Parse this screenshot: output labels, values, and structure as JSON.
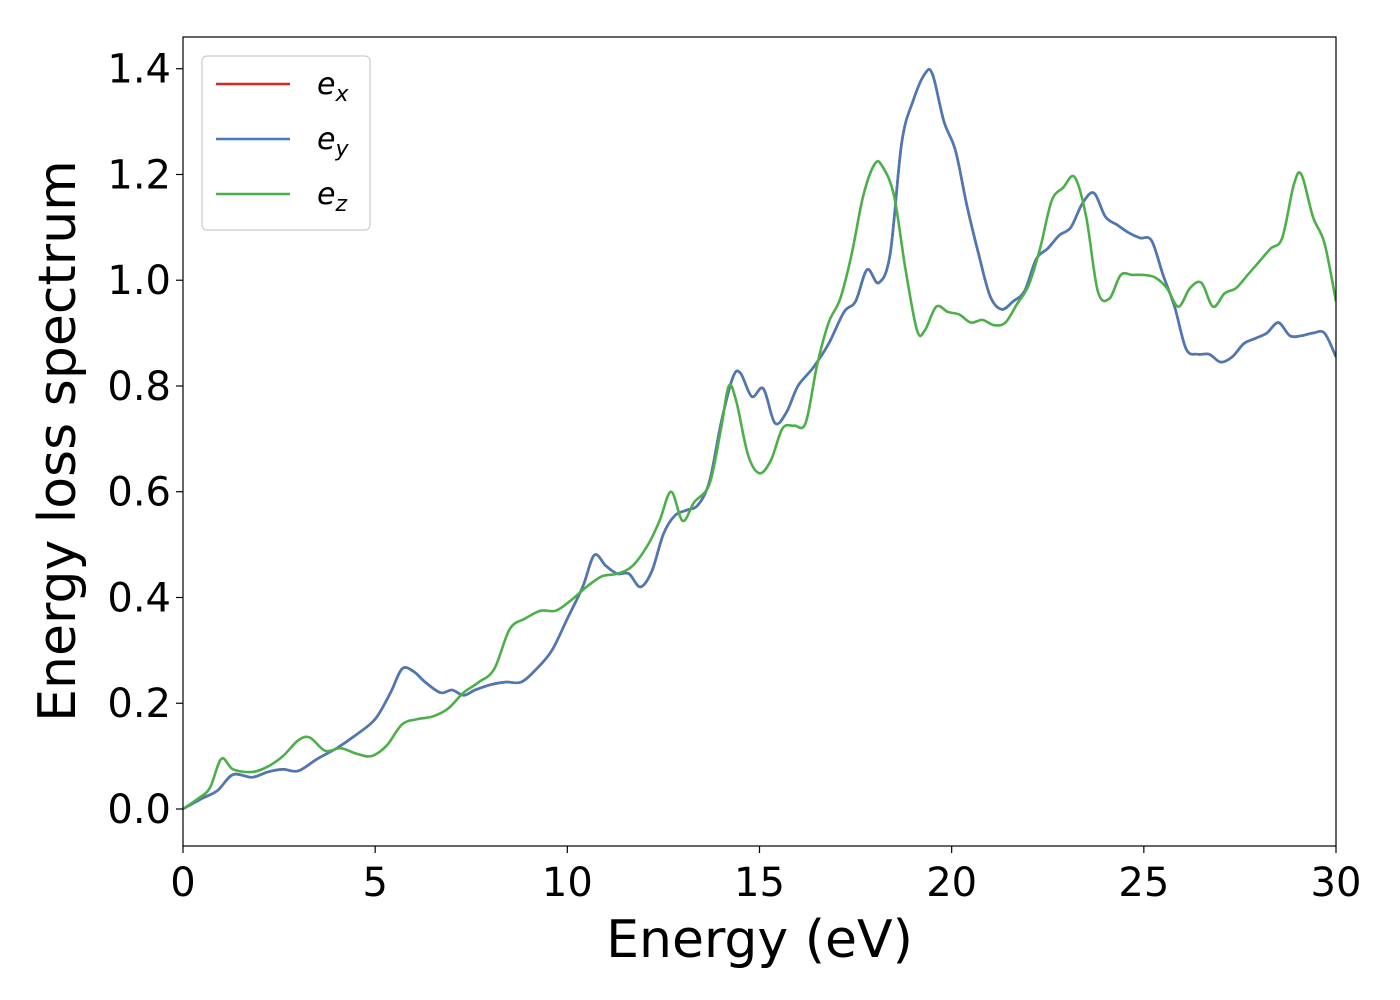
{
  "chart_data": {
    "type": "line",
    "xlabel": "Energy (eV)",
    "ylabel": "Energy loss spectrum",
    "xlim": [
      0,
      30
    ],
    "ylim": [
      -0.07,
      1.46
    ],
    "grid": false,
    "legend_position": "top-left",
    "x_ticks": [
      "0",
      "5",
      "10",
      "15",
      "20",
      "25",
      "30"
    ],
    "y_ticks": [
      "0.0",
      "0.2",
      "0.4",
      "0.6",
      "0.8",
      "1.0",
      "1.2",
      "1.4"
    ],
    "x_tick_values": [
      0,
      5,
      10,
      15,
      20,
      25,
      30
    ],
    "y_tick_values": [
      0.0,
      0.2,
      0.4,
      0.6,
      0.8,
      1.0,
      1.2,
      1.4
    ],
    "series": [
      {
        "name": "e_x",
        "label_base": "e",
        "label_sub": "x",
        "color": "#d62728",
        "x": [
          0,
          0.5,
          0.9,
          1.3,
          1.8,
          2.2,
          2.6,
          3.0,
          3.5,
          4.0,
          4.5,
          5.0,
          5.4,
          5.7,
          6.0,
          6.3,
          6.7,
          7.0,
          7.3,
          7.6,
          8.0,
          8.4,
          8.8,
          9.2,
          9.6,
          10.0,
          10.4,
          10.7,
          11.0,
          11.3,
          11.6,
          11.9,
          12.2,
          12.5,
          12.8,
          13.1,
          13.4,
          13.7,
          14.0,
          14.3,
          14.5,
          14.8,
          15.1,
          15.4,
          15.7,
          16.0,
          16.4,
          16.8,
          17.2,
          17.5,
          17.8,
          18.1,
          18.4,
          18.7,
          19.0,
          19.3,
          19.5,
          19.8,
          20.1,
          20.4,
          20.7,
          21.0,
          21.3,
          21.6,
          21.9,
          22.2,
          22.5,
          22.8,
          23.1,
          23.4,
          23.7,
          24.0,
          24.3,
          24.6,
          24.9,
          25.2,
          25.5,
          25.8,
          26.1,
          26.4,
          26.7,
          27.0,
          27.3,
          27.6,
          27.9,
          28.2,
          28.5,
          28.8,
          29.1,
          29.4,
          29.7,
          30.0
        ],
        "y": [
          0.0,
          0.02,
          0.035,
          0.065,
          0.06,
          0.07,
          0.075,
          0.072,
          0.095,
          0.115,
          0.14,
          0.17,
          0.22,
          0.265,
          0.26,
          0.24,
          0.22,
          0.225,
          0.215,
          0.225,
          0.235,
          0.24,
          0.24,
          0.265,
          0.3,
          0.36,
          0.42,
          0.48,
          0.46,
          0.445,
          0.445,
          0.42,
          0.45,
          0.52,
          0.555,
          0.565,
          0.575,
          0.62,
          0.73,
          0.815,
          0.825,
          0.78,
          0.795,
          0.73,
          0.75,
          0.8,
          0.835,
          0.88,
          0.94,
          0.96,
          1.02,
          0.995,
          1.05,
          1.26,
          1.34,
          1.39,
          1.39,
          1.3,
          1.245,
          1.14,
          1.05,
          0.97,
          0.945,
          0.96,
          0.98,
          1.04,
          1.06,
          1.085,
          1.1,
          1.145,
          1.165,
          1.12,
          1.105,
          1.09,
          1.08,
          1.075,
          1.01,
          0.95,
          0.87,
          0.86,
          0.86,
          0.845,
          0.855,
          0.88,
          0.89,
          0.9,
          0.92,
          0.895,
          0.895,
          0.9,
          0.9,
          0.855
        ]
      },
      {
        "name": "e_y",
        "label_base": "e",
        "label_sub": "y",
        "color": "#4a7ab5",
        "x": [
          0,
          0.5,
          0.9,
          1.3,
          1.8,
          2.2,
          2.6,
          3.0,
          3.5,
          4.0,
          4.5,
          5.0,
          5.4,
          5.7,
          6.0,
          6.3,
          6.7,
          7.0,
          7.3,
          7.6,
          8.0,
          8.4,
          8.8,
          9.2,
          9.6,
          10.0,
          10.4,
          10.7,
          11.0,
          11.3,
          11.6,
          11.9,
          12.2,
          12.5,
          12.8,
          13.1,
          13.4,
          13.7,
          14.0,
          14.3,
          14.5,
          14.8,
          15.1,
          15.4,
          15.7,
          16.0,
          16.4,
          16.8,
          17.2,
          17.5,
          17.8,
          18.1,
          18.4,
          18.7,
          19.0,
          19.3,
          19.5,
          19.8,
          20.1,
          20.4,
          20.7,
          21.0,
          21.3,
          21.6,
          21.9,
          22.2,
          22.5,
          22.8,
          23.1,
          23.4,
          23.7,
          24.0,
          24.3,
          24.6,
          24.9,
          25.2,
          25.5,
          25.8,
          26.1,
          26.4,
          26.7,
          27.0,
          27.3,
          27.6,
          27.9,
          28.2,
          28.5,
          28.8,
          29.1,
          29.4,
          29.7,
          30.0
        ],
        "y": [
          0.0,
          0.02,
          0.035,
          0.065,
          0.06,
          0.07,
          0.075,
          0.072,
          0.095,
          0.115,
          0.14,
          0.17,
          0.22,
          0.265,
          0.26,
          0.24,
          0.22,
          0.225,
          0.215,
          0.225,
          0.235,
          0.24,
          0.24,
          0.265,
          0.3,
          0.36,
          0.42,
          0.48,
          0.46,
          0.445,
          0.445,
          0.42,
          0.45,
          0.52,
          0.555,
          0.565,
          0.575,
          0.62,
          0.73,
          0.815,
          0.825,
          0.78,
          0.795,
          0.73,
          0.75,
          0.8,
          0.835,
          0.88,
          0.94,
          0.96,
          1.02,
          0.995,
          1.05,
          1.26,
          1.34,
          1.39,
          1.39,
          1.3,
          1.245,
          1.14,
          1.05,
          0.97,
          0.945,
          0.96,
          0.98,
          1.04,
          1.06,
          1.085,
          1.1,
          1.145,
          1.165,
          1.12,
          1.105,
          1.09,
          1.08,
          1.075,
          1.01,
          0.95,
          0.87,
          0.86,
          0.86,
          0.845,
          0.855,
          0.88,
          0.89,
          0.9,
          0.92,
          0.895,
          0.895,
          0.9,
          0.9,
          0.855
        ]
      },
      {
        "name": "e_z",
        "label_base": "e",
        "label_sub": "z",
        "color": "#4daf4a",
        "x": [
          0,
          0.4,
          0.7,
          1.0,
          1.3,
          1.8,
          2.2,
          2.6,
          3.0,
          3.3,
          3.7,
          4.1,
          4.5,
          4.9,
          5.3,
          5.7,
          6.1,
          6.5,
          6.9,
          7.3,
          7.7,
          8.1,
          8.5,
          8.9,
          9.3,
          9.7,
          10.1,
          10.5,
          10.9,
          11.3,
          11.7,
          12.1,
          12.4,
          12.7,
          13.0,
          13.3,
          13.7,
          14.0,
          14.2,
          14.4,
          14.7,
          15.0,
          15.3,
          15.6,
          15.9,
          16.2,
          16.5,
          16.8,
          17.1,
          17.4,
          17.7,
          18.0,
          18.2,
          18.5,
          18.8,
          19.1,
          19.3,
          19.6,
          19.9,
          20.2,
          20.5,
          20.8,
          21.1,
          21.4,
          21.7,
          22.0,
          22.3,
          22.6,
          22.9,
          23.2,
          23.5,
          23.8,
          24.1,
          24.4,
          24.7,
          25.0,
          25.3,
          25.6,
          25.9,
          26.2,
          26.5,
          26.8,
          27.1,
          27.4,
          27.7,
          28.0,
          28.3,
          28.6,
          28.9,
          29.1,
          29.4,
          29.7,
          30.0
        ],
        "y": [
          0.0,
          0.02,
          0.04,
          0.095,
          0.075,
          0.07,
          0.08,
          0.1,
          0.13,
          0.135,
          0.11,
          0.115,
          0.105,
          0.1,
          0.12,
          0.16,
          0.17,
          0.175,
          0.19,
          0.22,
          0.24,
          0.265,
          0.34,
          0.36,
          0.375,
          0.375,
          0.395,
          0.42,
          0.44,
          0.445,
          0.46,
          0.5,
          0.545,
          0.6,
          0.545,
          0.58,
          0.615,
          0.72,
          0.8,
          0.77,
          0.67,
          0.635,
          0.66,
          0.72,
          0.725,
          0.73,
          0.84,
          0.92,
          0.965,
          1.05,
          1.16,
          1.22,
          1.215,
          1.16,
          1.02,
          0.905,
          0.905,
          0.95,
          0.94,
          0.935,
          0.92,
          0.925,
          0.915,
          0.92,
          0.955,
          0.99,
          1.06,
          1.15,
          1.175,
          1.195,
          1.12,
          0.98,
          0.965,
          1.01,
          1.01,
          1.01,
          1.005,
          0.985,
          0.95,
          0.985,
          0.995,
          0.95,
          0.975,
          0.985,
          1.01,
          1.035,
          1.06,
          1.08,
          1.18,
          1.2,
          1.12,
          1.07,
          0.96
        ]
      }
    ]
  }
}
